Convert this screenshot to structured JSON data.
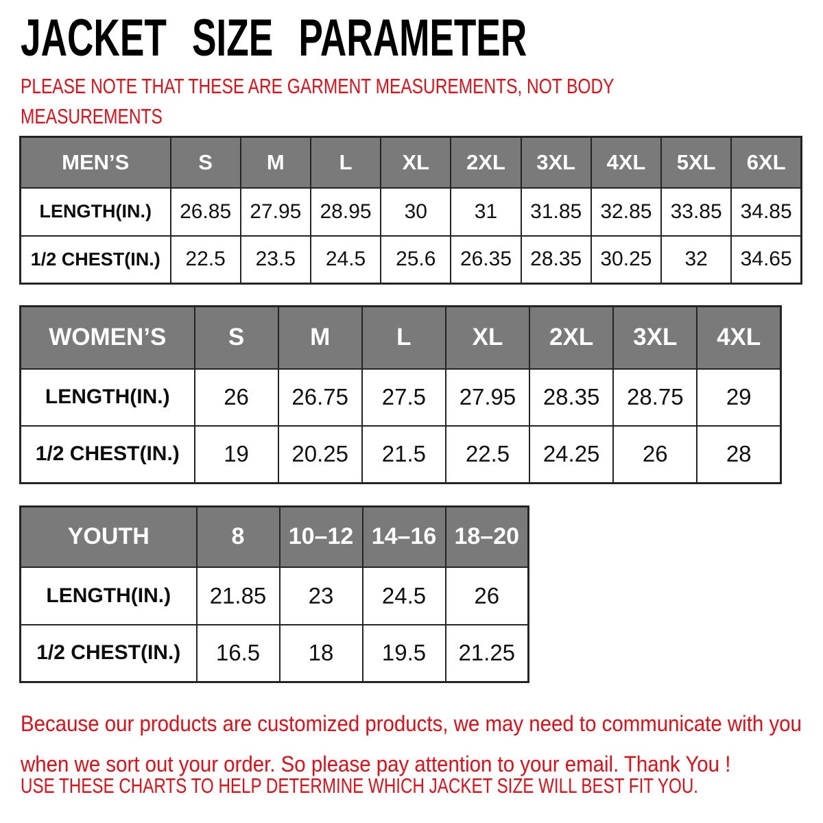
{
  "page": {
    "title": "JACKET SIZE PARAMETER",
    "note_lines": [
      "PLEASE NOTE THAT THESE ARE GARMENT MEASUREMENTS, NOT BODY",
      "MEASUREMENTS"
    ],
    "footer_lines": [
      "Because our products are customized products, we may need to communicate with you",
      "when we sort out your order. So please pay attention to your email. Thank You !"
    ],
    "footer_caps": "USE THESE CHARTS TO HELP DETERMINE WHICH JACKET SIZE WILL BEST FIT YOU."
  },
  "colors": {
    "accent_red": "#e30d16",
    "header_gray": "#7a7a7a",
    "border_dark": "#242424"
  },
  "tables": [
    {
      "id": "mens",
      "group_label": "MEN’S",
      "sizes": [
        "S",
        "M",
        "L",
        "XL",
        "2XL",
        "3XL",
        "4XL",
        "5XL",
        "6XL"
      ],
      "rows": [
        {
          "label": "LENGTH(IN.)",
          "values": [
            "26.85",
            "27.95",
            "28.95",
            "30",
            "31",
            "31.85",
            "32.85",
            "33.85",
            "34.85"
          ]
        },
        {
          "label": "1/2 CHEST(IN.)",
          "values": [
            "22.5",
            "23.5",
            "24.5",
            "25.6",
            "26.35",
            "28.35",
            "30.25",
            "32",
            "34.65"
          ]
        }
      ]
    },
    {
      "id": "womens",
      "group_label": "WOMEN’S",
      "sizes": [
        "S",
        "M",
        "L",
        "XL",
        "2XL",
        "3XL",
        "4XL"
      ],
      "rows": [
        {
          "label": "LENGTH(IN.)",
          "values": [
            "26",
            "26.75",
            "27.5",
            "27.95",
            "28.35",
            "28.75",
            "29"
          ]
        },
        {
          "label": "1/2 CHEST(IN.)",
          "values": [
            "19",
            "20.25",
            "21.5",
            "22.5",
            "24.25",
            "26",
            "28"
          ]
        }
      ]
    },
    {
      "id": "youth",
      "group_label": "YOUTH",
      "sizes": [
        "8",
        "10–12",
        "14–16",
        "18–20"
      ],
      "rows": [
        {
          "label": "LENGTH(IN.)",
          "values": [
            "21.85",
            "23",
            "24.5",
            "26"
          ]
        },
        {
          "label": "1/2 CHEST(IN.)",
          "values": [
            "16.5",
            "18",
            "19.5",
            "21.25"
          ]
        }
      ]
    }
  ]
}
